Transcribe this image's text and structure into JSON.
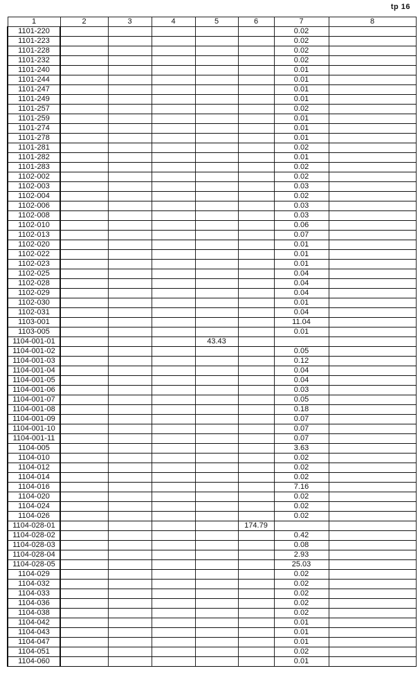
{
  "page_label": "tp 16",
  "columns": [
    "1",
    "2",
    "3",
    "4",
    "5",
    "6",
    "7",
    "8"
  ],
  "rows": [
    {
      "code": "1101-220",
      "c7": "0.02"
    },
    {
      "code": "1101-223",
      "c7": "0.02"
    },
    {
      "code": "1101-228",
      "c7": "0.02"
    },
    {
      "code": "1101-232",
      "c7": "0.02"
    },
    {
      "code": "1101-240",
      "c7": "0.01"
    },
    {
      "code": "1101-244",
      "c7": "0.01"
    },
    {
      "code": "1101-247",
      "c7": "0.01"
    },
    {
      "code": "1101-249",
      "c7": "0.01"
    },
    {
      "code": "1101-257",
      "c7": "0.02"
    },
    {
      "code": "1101-259",
      "c7": "0.01"
    },
    {
      "code": "1101-274",
      "c7": "0.01"
    },
    {
      "code": "1101-278",
      "c7": "0.01"
    },
    {
      "code": "1101-281",
      "c7": "0.02"
    },
    {
      "code": "1101-282",
      "c7": "0.01"
    },
    {
      "code": "1101-283",
      "c7": "0.02"
    },
    {
      "code": "1102-002",
      "c7": "0.02"
    },
    {
      "code": "1102-003",
      "c7": "0.03"
    },
    {
      "code": "1102-004",
      "c7": "0.02"
    },
    {
      "code": "1102-006",
      "c7": "0.03"
    },
    {
      "code": "1102-008",
      "c7": "0.03"
    },
    {
      "code": "1102-010",
      "c7": "0.06"
    },
    {
      "code": "1102-013",
      "c7": "0.07"
    },
    {
      "code": "1102-020",
      "c7": "0.01"
    },
    {
      "code": "1102-022",
      "c7": "0.01"
    },
    {
      "code": "1102-023",
      "c7": "0.01"
    },
    {
      "code": "1102-025",
      "c7": "0.04"
    },
    {
      "code": "1102-028",
      "c7": "0.04"
    },
    {
      "code": "1102-029",
      "c7": "0.04"
    },
    {
      "code": "1102-030",
      "c7": "0.01"
    },
    {
      "code": "1102-031",
      "c7": "0.04"
    },
    {
      "code": "1103-001",
      "c7": "11.04"
    },
    {
      "code": "1103-005",
      "c7": "0.01"
    },
    {
      "code": "1104-001-01",
      "c5": "43.43"
    },
    {
      "code": "1104-001-02",
      "c7": "0.05"
    },
    {
      "code": "1104-001-03",
      "c7": "0.12"
    },
    {
      "code": "1104-001-04",
      "c7": "0.04"
    },
    {
      "code": "1104-001-05",
      "c7": "0.04"
    },
    {
      "code": "1104-001-06",
      "c7": "0.03"
    },
    {
      "code": "1104-001-07",
      "c7": "0.05"
    },
    {
      "code": "1104-001-08",
      "c7": "0.18"
    },
    {
      "code": "1104-001-09",
      "c7": "0.07"
    },
    {
      "code": "1104-001-10",
      "c7": "0.07"
    },
    {
      "code": "1104-001-11",
      "c7": "0.07"
    },
    {
      "code": "1104-005",
      "c7": "3.63"
    },
    {
      "code": "1104-010",
      "c7": "0.02"
    },
    {
      "code": "1104-012",
      "c7": "0.02"
    },
    {
      "code": "1104-014",
      "c7": "0.02"
    },
    {
      "code": "1104-016",
      "c7": "7.16"
    },
    {
      "code": "1104-020",
      "c7": "0.02"
    },
    {
      "code": "1104-024",
      "c7": "0.02"
    },
    {
      "code": "1104-026",
      "c7": "0.02"
    },
    {
      "code": "1104-028-01",
      "c6": "174.79"
    },
    {
      "code": "1104-028-02",
      "c7": "0.42"
    },
    {
      "code": "1104-028-03",
      "c7": "0.08"
    },
    {
      "code": "1104-028-04",
      "c7": "2.93"
    },
    {
      "code": "1104-028-05",
      "c7": "25.03"
    },
    {
      "code": "1104-029",
      "c7": "0.02"
    },
    {
      "code": "1104-032",
      "c7": "0.02"
    },
    {
      "code": "1104-033",
      "c7": "0.02"
    },
    {
      "code": "1104-036",
      "c7": "0.02"
    },
    {
      "code": "1104-038",
      "c7": "0.02"
    },
    {
      "code": "1104-042",
      "c7": "0.01"
    },
    {
      "code": "1104-043",
      "c7": "0.01"
    },
    {
      "code": "1104-047",
      "c7": "0.01"
    },
    {
      "code": "1104-051",
      "c7": "0.02"
    },
    {
      "code": "1104-060",
      "c7": "0.01"
    }
  ]
}
